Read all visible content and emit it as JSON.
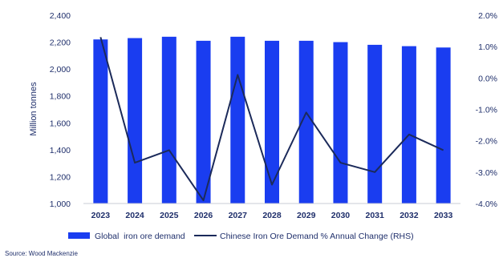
{
  "chart_data": {
    "type": "bar",
    "categories": [
      "2023",
      "2024",
      "2025",
      "2026",
      "2027",
      "2028",
      "2029",
      "2030",
      "2031",
      "2032",
      "2033"
    ],
    "series": [
      {
        "name": "Global  iron ore demand",
        "type": "bar",
        "axis": "left",
        "values": [
          2220,
          2230,
          2240,
          2210,
          2240,
          2210,
          2210,
          2200,
          2180,
          2170,
          2160
        ]
      },
      {
        "name": "Chinese Iron Ore Demand % Annual Change (RHS)",
        "type": "line",
        "axis": "right",
        "values": [
          1.3,
          -2.7,
          -2.3,
          -3.9,
          0.1,
          -3.4,
          -1.1,
          -2.7,
          -3.0,
          -1.8,
          -2.3
        ]
      }
    ],
    "ylabel": "Million tonnes",
    "ylim": [
      1000,
      2400
    ],
    "yticks": [
      "1,000",
      "1,200",
      "1,400",
      "1,600",
      "1,800",
      "2,000",
      "2,200",
      "2,400"
    ],
    "y2lim": [
      -4.0,
      2.0
    ],
    "y2ticks": [
      "-4.0%",
      "-3.0%",
      "-2.0%",
      "-1.0%",
      "0.0%",
      "1.0%",
      "2.0%"
    ],
    "grid": false,
    "legend": "bottom",
    "source": "Source: Wood Mackenzie"
  },
  "colors": {
    "bar": "#1a3df0",
    "line": "#1b2a5a",
    "text": "#1f2f6b"
  }
}
